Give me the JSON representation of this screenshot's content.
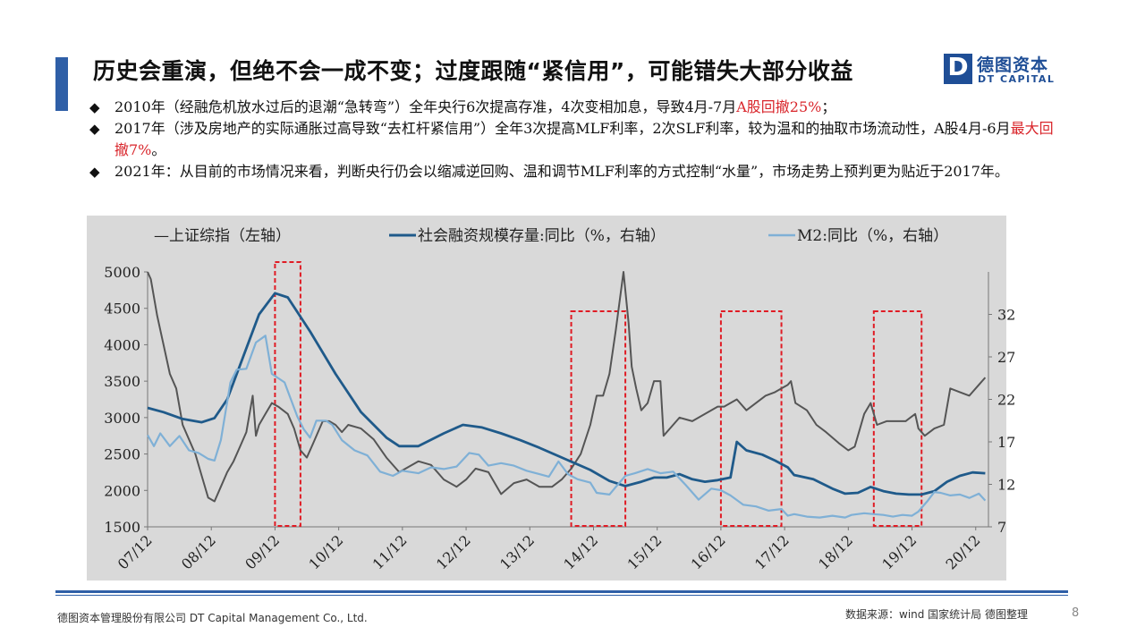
{
  "title": "历史会重演，但绝不会一成不变；过度跟随“紧信用”，可能错失大部分收益",
  "logo": {
    "mark": "D",
    "cn": "德图资本",
    "en": "DT CAPITAL"
  },
  "bullets": [
    {
      "segments": [
        {
          "text": "2010年（经融危机放水过后的退潮“急转弯”）全年央行6次提高存准，4次变相加息，导致4月-7月",
          "red": false
        },
        {
          "text": "A股回撤25%",
          "red": true
        },
        {
          "text": "；",
          "red": false
        }
      ]
    },
    {
      "segments": [
        {
          "text": "2017年（涉及房地产的实际通胀过高导致“去杠杆紧信用”）全年3次提高MLF利率，2次SLF利率，较为温和的抽取市场流动性，A股4月-6月",
          "red": false
        },
        {
          "text": "最大回撤7%",
          "red": true
        },
        {
          "text": "。",
          "red": false
        }
      ]
    },
    {
      "segments": [
        {
          "text": "2021年：从目前的市场情况来看，判断央行仍会以缩减逆回购、温和调节MLF利率的方式控制“水量”，市场走势上预判更为贴近于2017年。",
          "red": false
        }
      ]
    }
  ],
  "chart_data": {
    "type": "line",
    "x_labels": [
      "07/12",
      "08/12",
      "09/12",
      "10/12",
      "11/12",
      "12/12",
      "13/12",
      "14/12",
      "15/12",
      "16/12",
      "17/12",
      "18/12",
      "19/12",
      "20/12"
    ],
    "y_left": {
      "ticks": [
        1500,
        2000,
        2500,
        3000,
        3500,
        4000,
        4500,
        5000
      ],
      "range": [
        1500,
        5000
      ]
    },
    "y_right": {
      "ticks": [
        7,
        12,
        17,
        22,
        27,
        32
      ],
      "range": [
        7,
        37
      ]
    },
    "x_range": [
      2007.95,
      2021.15
    ],
    "legend": [
      "—上证综指（左轴）",
      "社会融资规模存量:同比（%，右轴）",
      "M2:同比（%，右轴）"
    ],
    "series": [
      {
        "name": "—上证综指（左轴）",
        "axis": "left",
        "color": "#555555",
        "points": [
          [
            2007.95,
            5000
          ],
          [
            2008.0,
            4900
          ],
          [
            2008.1,
            4400
          ],
          [
            2008.2,
            4000
          ],
          [
            2008.3,
            3600
          ],
          [
            2008.4,
            3400
          ],
          [
            2008.5,
            2900
          ],
          [
            2008.6,
            2700
          ],
          [
            2008.7,
            2500
          ],
          [
            2008.8,
            2200
          ],
          [
            2008.9,
            1900
          ],
          [
            2009.0,
            1850
          ],
          [
            2009.1,
            2050
          ],
          [
            2009.2,
            2250
          ],
          [
            2009.3,
            2400
          ],
          [
            2009.4,
            2600
          ],
          [
            2009.5,
            2800
          ],
          [
            2009.6,
            3300
          ],
          [
            2009.65,
            2750
          ],
          [
            2009.7,
            2900
          ],
          [
            2009.8,
            3050
          ],
          [
            2009.9,
            3200
          ],
          [
            2010.0,
            3150
          ],
          [
            2010.15,
            3050
          ],
          [
            2010.25,
            2850
          ],
          [
            2010.35,
            2550
          ],
          [
            2010.45,
            2450
          ],
          [
            2010.55,
            2650
          ],
          [
            2010.7,
            2950
          ],
          [
            2010.8,
            2950
          ],
          [
            2010.9,
            2900
          ],
          [
            2011.0,
            2800
          ],
          [
            2011.1,
            2900
          ],
          [
            2011.3,
            2850
          ],
          [
            2011.5,
            2700
          ],
          [
            2011.7,
            2450
          ],
          [
            2011.9,
            2250
          ],
          [
            2012.0,
            2300
          ],
          [
            2012.2,
            2400
          ],
          [
            2012.4,
            2350
          ],
          [
            2012.6,
            2150
          ],
          [
            2012.8,
            2050
          ],
          [
            2012.95,
            2150
          ],
          [
            2013.1,
            2300
          ],
          [
            2013.3,
            2250
          ],
          [
            2013.5,
            1950
          ],
          [
            2013.7,
            2100
          ],
          [
            2013.9,
            2150
          ],
          [
            2014.1,
            2050
          ],
          [
            2014.3,
            2050
          ],
          [
            2014.45,
            2150
          ],
          [
            2014.6,
            2300
          ],
          [
            2014.75,
            2500
          ],
          [
            2014.9,
            2900
          ],
          [
            2015.0,
            3300
          ],
          [
            2015.1,
            3300
          ],
          [
            2015.2,
            3600
          ],
          [
            2015.3,
            4200
          ],
          [
            2015.42,
            5000
          ],
          [
            2015.5,
            4300
          ],
          [
            2015.55,
            3700
          ],
          [
            2015.62,
            3400
          ],
          [
            2015.7,
            3100
          ],
          [
            2015.8,
            3200
          ],
          [
            2015.9,
            3500
          ],
          [
            2016.0,
            3500
          ],
          [
            2016.05,
            2750
          ],
          [
            2016.15,
            2850
          ],
          [
            2016.3,
            3000
          ],
          [
            2016.5,
            2950
          ],
          [
            2016.7,
            3050
          ],
          [
            2016.9,
            3150
          ],
          [
            2017.0,
            3150
          ],
          [
            2017.2,
            3250
          ],
          [
            2017.35,
            3100
          ],
          [
            2017.5,
            3200
          ],
          [
            2017.65,
            3300
          ],
          [
            2017.8,
            3350
          ],
          [
            2017.9,
            3400
          ],
          [
            2018.0,
            3450
          ],
          [
            2018.05,
            3500
          ],
          [
            2018.12,
            3200
          ],
          [
            2018.3,
            3100
          ],
          [
            2018.45,
            2900
          ],
          [
            2018.6,
            2800
          ],
          [
            2018.8,
            2650
          ],
          [
            2018.95,
            2550
          ],
          [
            2019.05,
            2600
          ],
          [
            2019.2,
            3050
          ],
          [
            2019.3,
            3200
          ],
          [
            2019.4,
            2900
          ],
          [
            2019.55,
            2950
          ],
          [
            2019.7,
            2950
          ],
          [
            2019.85,
            2950
          ],
          [
            2020.0,
            3050
          ],
          [
            2020.05,
            2850
          ],
          [
            2020.15,
            2750
          ],
          [
            2020.3,
            2850
          ],
          [
            2020.45,
            2900
          ],
          [
            2020.55,
            3400
          ],
          [
            2020.7,
            3350
          ],
          [
            2020.85,
            3300
          ],
          [
            2021.0,
            3450
          ],
          [
            2021.1,
            3550
          ]
        ]
      },
      {
        "name": "社会融资规模存量:同比（%，右轴）",
        "axis": "right",
        "color": "#1f5a8a",
        "points": [
          [
            2007.95,
            21
          ],
          [
            2008.2,
            20.5
          ],
          [
            2008.5,
            19.7
          ],
          [
            2008.8,
            19.3
          ],
          [
            2009.0,
            19.8
          ],
          [
            2009.2,
            22
          ],
          [
            2009.45,
            27
          ],
          [
            2009.7,
            32
          ],
          [
            2009.95,
            34.5
          ],
          [
            2010.15,
            34
          ],
          [
            2010.5,
            30
          ],
          [
            2010.9,
            25
          ],
          [
            2011.3,
            20.5
          ],
          [
            2011.7,
            17.5
          ],
          [
            2011.9,
            16.5
          ],
          [
            2012.2,
            16.5
          ],
          [
            2012.6,
            18
          ],
          [
            2012.9,
            19
          ],
          [
            2013.2,
            18.7
          ],
          [
            2013.5,
            18
          ],
          [
            2013.8,
            17.2
          ],
          [
            2014.1,
            16.3
          ],
          [
            2014.5,
            15
          ],
          [
            2014.9,
            13.7
          ],
          [
            2015.2,
            12.4
          ],
          [
            2015.45,
            11.8
          ],
          [
            2015.7,
            12.3
          ],
          [
            2015.9,
            12.8
          ],
          [
            2016.1,
            12.8
          ],
          [
            2016.3,
            13.2
          ],
          [
            2016.5,
            12.6
          ],
          [
            2016.7,
            12.3
          ],
          [
            2016.9,
            12.5
          ],
          [
            2017.1,
            12.8
          ],
          [
            2017.2,
            17
          ],
          [
            2017.35,
            16
          ],
          [
            2017.6,
            15.5
          ],
          [
            2017.8,
            14.8
          ],
          [
            2018.0,
            14
          ],
          [
            2018.1,
            13.1
          ],
          [
            2018.4,
            12.6
          ],
          [
            2018.7,
            11.5
          ],
          [
            2018.9,
            10.9
          ],
          [
            2019.1,
            11
          ],
          [
            2019.3,
            11.7
          ],
          [
            2019.5,
            11.2
          ],
          [
            2019.7,
            10.9
          ],
          [
            2019.9,
            10.8
          ],
          [
            2020.1,
            10.8
          ],
          [
            2020.3,
            11.2
          ],
          [
            2020.5,
            12.3
          ],
          [
            2020.7,
            13
          ],
          [
            2020.9,
            13.4
          ],
          [
            2021.1,
            13.3
          ]
        ]
      },
      {
        "name": "M2:同比（%，右轴）",
        "axis": "right",
        "color": "#7fb0d6",
        "points": [
          [
            2007.95,
            17.8
          ],
          [
            2008.05,
            16.5
          ],
          [
            2008.15,
            18
          ],
          [
            2008.3,
            16.5
          ],
          [
            2008.45,
            17.7
          ],
          [
            2008.6,
            16
          ],
          [
            2008.75,
            15.7
          ],
          [
            2008.9,
            15
          ],
          [
            2009.0,
            14.8
          ],
          [
            2009.1,
            17.2
          ],
          [
            2009.25,
            24
          ],
          [
            2009.35,
            25.5
          ],
          [
            2009.5,
            25.6
          ],
          [
            2009.65,
            28.7
          ],
          [
            2009.8,
            29.5
          ],
          [
            2009.9,
            25
          ],
          [
            2010.1,
            24
          ],
          [
            2010.2,
            22
          ],
          [
            2010.3,
            20
          ],
          [
            2010.4,
            18.5
          ],
          [
            2010.5,
            17.5
          ],
          [
            2010.6,
            19.5
          ],
          [
            2010.75,
            19.5
          ],
          [
            2010.85,
            19
          ],
          [
            2011.0,
            17.2
          ],
          [
            2011.2,
            16
          ],
          [
            2011.4,
            15.4
          ],
          [
            2011.6,
            13.5
          ],
          [
            2011.8,
            13
          ],
          [
            2011.95,
            13.6
          ],
          [
            2012.2,
            13.3
          ],
          [
            2012.4,
            14
          ],
          [
            2012.6,
            13.8
          ],
          [
            2012.8,
            14.1
          ],
          [
            2013.0,
            15.7
          ],
          [
            2013.15,
            15.5
          ],
          [
            2013.3,
            14.2
          ],
          [
            2013.5,
            14.5
          ],
          [
            2013.7,
            14.2
          ],
          [
            2013.9,
            13.6
          ],
          [
            2014.1,
            13.2
          ],
          [
            2014.25,
            12.9
          ],
          [
            2014.4,
            14.7
          ],
          [
            2014.55,
            13.2
          ],
          [
            2014.7,
            12.6
          ],
          [
            2014.9,
            12.2
          ],
          [
            2015.0,
            11
          ],
          [
            2015.2,
            10.8
          ],
          [
            2015.3,
            11.7
          ],
          [
            2015.45,
            13
          ],
          [
            2015.6,
            13.3
          ],
          [
            2015.8,
            13.8
          ],
          [
            2016.0,
            13.3
          ],
          [
            2016.2,
            13.5
          ],
          [
            2016.4,
            11.9
          ],
          [
            2016.6,
            10.2
          ],
          [
            2016.8,
            11.5
          ],
          [
            2016.95,
            11.3
          ],
          [
            2017.1,
            10.7
          ],
          [
            2017.3,
            9.6
          ],
          [
            2017.5,
            9.4
          ],
          [
            2017.7,
            8.9
          ],
          [
            2017.9,
            9.1
          ],
          [
            2018.0,
            8.3
          ],
          [
            2018.1,
            8.5
          ],
          [
            2018.3,
            8.2
          ],
          [
            2018.5,
            8.1
          ],
          [
            2018.7,
            8.3
          ],
          [
            2018.9,
            8.1
          ],
          [
            2019.0,
            8.4
          ],
          [
            2019.2,
            8.6
          ],
          [
            2019.35,
            8.5
          ],
          [
            2019.5,
            8.4
          ],
          [
            2019.65,
            8.2
          ],
          [
            2019.8,
            8.4
          ],
          [
            2019.95,
            8.3
          ],
          [
            2020.05,
            8.8
          ],
          [
            2020.2,
            10.1
          ],
          [
            2020.3,
            11.1
          ],
          [
            2020.4,
            11
          ],
          [
            2020.55,
            10.7
          ],
          [
            2020.7,
            10.8
          ],
          [
            2020.85,
            10.4
          ],
          [
            2021.0,
            10.9
          ],
          [
            2021.1,
            10.1
          ]
        ]
      }
    ],
    "highlights": [
      [
        2009.95,
        2010.35
      ],
      [
        2014.6,
        2015.45
      ],
      [
        2016.95,
        2017.9
      ],
      [
        2019.35,
        2020.1
      ]
    ]
  },
  "footer": {
    "company": "德图资本管理股份有限公司  DT Capital Management  Co., Ltd.",
    "source": "数据来源：wind  国家统计局 德图整理",
    "page": "8"
  }
}
